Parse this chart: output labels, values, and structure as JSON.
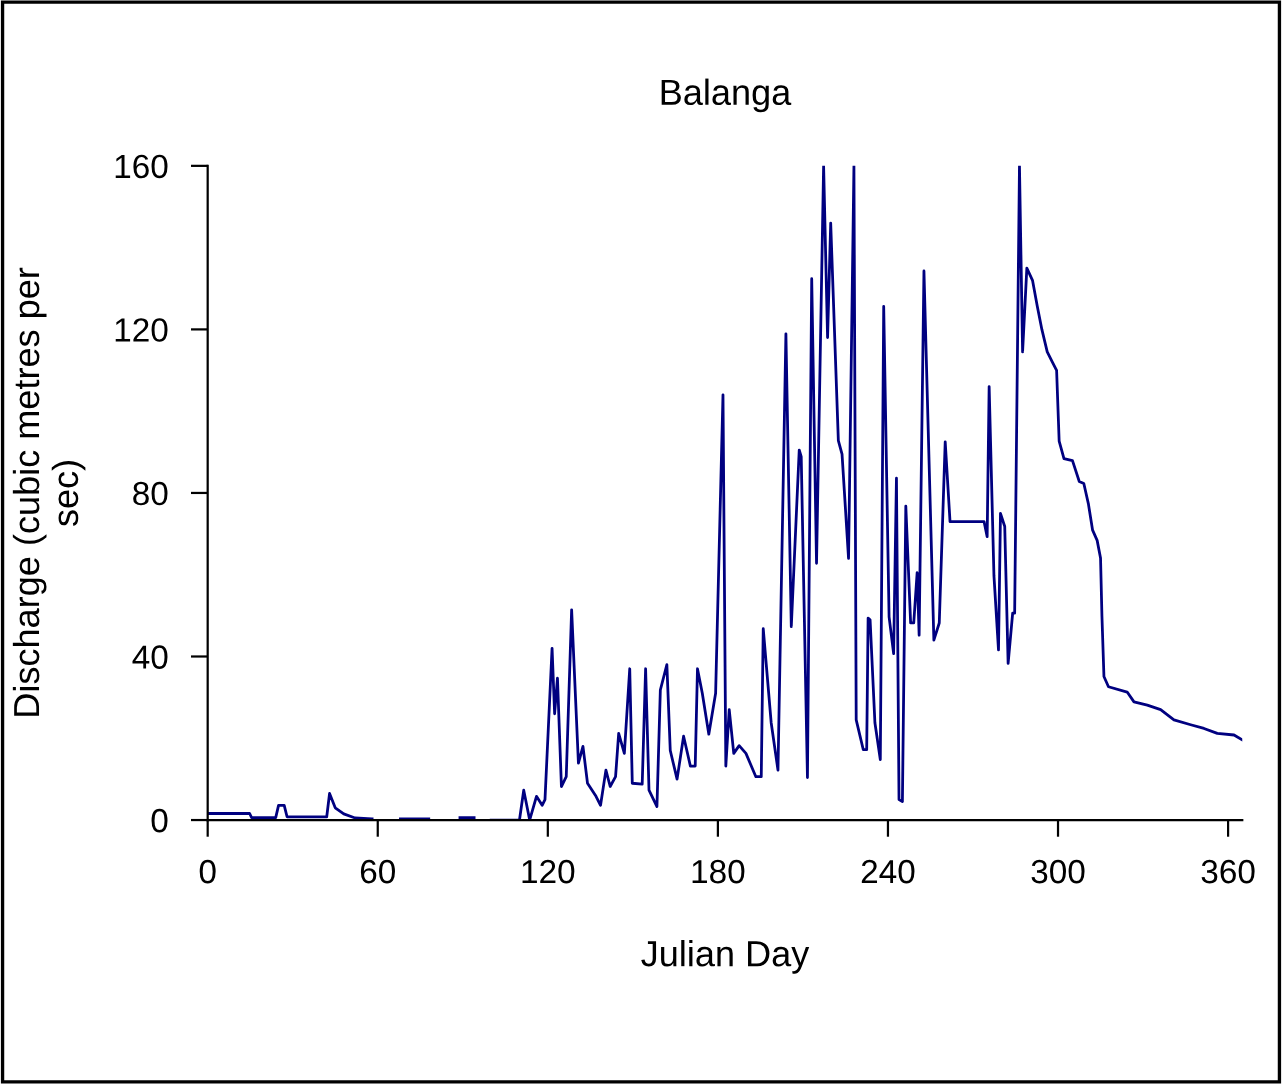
{
  "chart_data": {
    "type": "line",
    "title": "Balanga",
    "xlabel": "Julian Day",
    "ylabel": "Discharge (cubic metres per\nsec)",
    "xlim": [
      0,
      365
    ],
    "xticks": [
      0,
      60,
      120,
      180,
      240,
      300,
      360
    ],
    "ylim": [
      0,
      160
    ],
    "yticks": [
      0,
      40,
      80,
      120,
      160
    ],
    "grid": false,
    "legend": false,
    "marker": "none",
    "line_style": "solid",
    "series": [
      {
        "color": "#000080",
        "x": [
          0,
          14.8,
          15.5,
          24,
          25,
          27,
          28,
          42,
          43,
          45,
          48,
          52,
          58,
          59,
          68,
          78,
          79,
          89,
          94,
          95,
          100,
          110,
          111.5,
          113.6,
          116,
          118,
          119,
          121.5,
          122.4,
          123.4,
          124.8,
          126.5,
          128.4,
          130.8,
          132.4,
          134,
          137,
          138.6,
          140.5,
          142,
          143.9,
          145,
          147,
          148.9,
          149.8,
          153.3,
          154.5,
          155.7,
          158.5,
          159.7,
          162,
          163.2,
          165.6,
          167.9,
          170.3,
          172,
          172.8,
          174.5,
          176.8,
          179.2,
          181.8,
          182.8,
          184,
          185.6,
          187.5,
          189.9,
          193.4,
          195.3,
          196,
          198.8,
          201.2,
          204,
          205.9,
          208.7,
          209.4,
          211.6,
          213.1,
          214.8,
          217.3,
          218.7,
          219.8,
          222.5,
          223.8,
          226.1,
          228,
          228.8,
          231.3,
          232.5,
          233,
          233.7,
          235.4,
          237.3,
          238.5,
          240.4,
          242,
          243,
          243.9,
          245.1,
          246.3,
          248,
          249.1,
          250.3,
          251,
          252.7,
          256.2,
          258.1,
          260.2,
          261.9,
          273.9,
          275,
          275.7,
          277.4,
          279,
          279.7,
          281.2,
          282.4,
          284,
          284.7,
          286.4,
          287.5,
          289,
          291,
          292.7,
          294.3,
          296.2,
          298.1,
          299.5,
          300.4,
          302.1,
          305.1,
          307.5,
          309.1,
          310.7,
          312.2,
          313.8,
          315,
          315.5,
          316.2,
          317.8,
          324.4,
          326.8,
          331.5,
          336.2,
          340.9,
          346.8,
          351.5,
          356.2,
          362.1,
          365
        ],
        "values": [
          1.6,
          1.6,
          0.6,
          0.6,
          3.6,
          3.6,
          0.8,
          0.8,
          6.5,
          3,
          1.5,
          0.5,
          0.3,
          null,
          0.3,
          0.3,
          null,
          0.6,
          0.6,
          null,
          0,
          0,
          7.3,
          0,
          5.8,
          3.6,
          5,
          42,
          26,
          34.7,
          8.2,
          10.6,
          51.4,
          13.9,
          18,
          9,
          5.8,
          3.6,
          12.2,
          8.2,
          10.6,
          21.2,
          16.3,
          37,
          9,
          8.8,
          37,
          7.3,
          3.3,
          31.8,
          38,
          17,
          10,
          20.5,
          13.2,
          13.2,
          37,
          31,
          21,
          31,
          104,
          13.2,
          27,
          16.3,
          18.2,
          16.3,
          10.6,
          10.6,
          46.8,
          23.8,
          12.2,
          118.9,
          47.3,
          90.5,
          88.9,
          10.4,
          132.4,
          62.8,
          160,
          118,
          146,
          92.8,
          89.5,
          64,
          160,
          24.5,
          17.2,
          17.2,
          49.4,
          49,
          23.8,
          14.8,
          125.6,
          49.7,
          40.7,
          83.6,
          5,
          4.5,
          76.8,
          48.2,
          48.2,
          60.5,
          45.2,
          134.3,
          44,
          48.2,
          92.5,
          73,
          73,
          69.3,
          106,
          59.7,
          41.6,
          75,
          71.8,
          38.3,
          50.6,
          50.6,
          160,
          114.5,
          135,
          132,
          125.6,
          120,
          114.5,
          111.9,
          110,
          92.7,
          88.4,
          87.9,
          82.8,
          82.3,
          77.4,
          70.9,
          68.4,
          64.1,
          49.8,
          35.1,
          32.6,
          31.3,
          28.9,
          28.1,
          27,
          24.5,
          23.3,
          22.4,
          21.2,
          20.8,
          19.6
        ]
      }
    ]
  }
}
